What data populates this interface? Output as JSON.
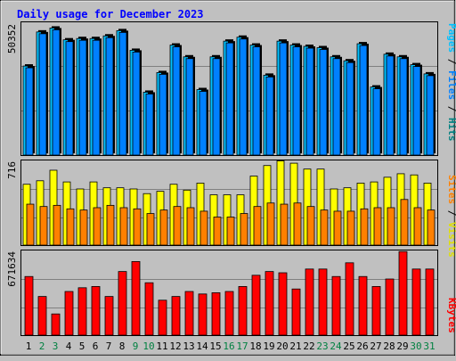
{
  "title": "Daily usage for December 2023",
  "panels": {
    "top": {
      "max_label": "50352",
      "legend": [
        "Pages",
        " / ",
        "Files",
        " / ",
        "Hits"
      ]
    },
    "middle": {
      "max_label": "716",
      "legend": [
        "Sites",
        " / ",
        "Visits"
      ]
    },
    "bottom": {
      "max_label": "671634",
      "legend": [
        "KBytes"
      ]
    }
  },
  "colors": {
    "background": "#c0c0c0",
    "plot_background": "#c0c0c0",
    "title": "#0000ff",
    "hits": "#00c0ff",
    "files": "#0080ff",
    "pages": "#00c0ff",
    "visits": "#ffff00",
    "sites": "#ff8000",
    "kbytes": "#ff0000",
    "weekday_label": "#000000",
    "weekend_label": "#008040"
  },
  "chart_data": [
    {
      "type": "bar",
      "title": "Daily usage for December 2023",
      "categories": [
        "1",
        "2",
        "3",
        "4",
        "5",
        "6",
        "7",
        "8",
        "9",
        "10",
        "11",
        "12",
        "13",
        "14",
        "15",
        "16",
        "17",
        "18",
        "19",
        "20",
        "21",
        "22",
        "23",
        "24",
        "25",
        "26",
        "27",
        "28",
        "29",
        "30",
        "31"
      ],
      "weekend_days": [
        "2",
        "3",
        "9",
        "10",
        "16",
        "17",
        "23",
        "24",
        "30",
        "31"
      ],
      "ylim": [
        0,
        50352
      ],
      "series": [
        {
          "name": "Hits",
          "values": [
            34000,
            47000,
            48500,
            44000,
            44500,
            44500,
            45500,
            47500,
            40000,
            24000,
            31500,
            42000,
            37500,
            25000,
            37500,
            43500,
            45000,
            42000,
            30500,
            43500,
            42000,
            41500,
            41000,
            37500,
            36000,
            42500,
            26000,
            38500,
            37500,
            34500,
            31000
          ]
        },
        {
          "name": "Files",
          "values": [
            34000,
            47000,
            48500,
            44000,
            44500,
            44500,
            45500,
            47500,
            40000,
            24000,
            31500,
            42000,
            37500,
            25000,
            37500,
            43500,
            45000,
            42000,
            30500,
            43500,
            42000,
            41500,
            41000,
            37500,
            36000,
            42500,
            26000,
            38500,
            37500,
            34500,
            31000
          ]
        }
      ]
    },
    {
      "type": "bar",
      "categories": [
        "1",
        "2",
        "3",
        "4",
        "5",
        "6",
        "7",
        "8",
        "9",
        "10",
        "11",
        "12",
        "13",
        "14",
        "15",
        "16",
        "17",
        "18",
        "19",
        "20",
        "21",
        "22",
        "23",
        "24",
        "25",
        "26",
        "27",
        "28",
        "29",
        "30",
        "31"
      ],
      "ylim": [
        0,
        716
      ],
      "series": [
        {
          "name": "Visits",
          "values": [
            520,
            550,
            640,
            540,
            480,
            540,
            490,
            490,
            480,
            440,
            460,
            520,
            470,
            530,
            430,
            430,
            430,
            590,
            680,
            720,
            700,
            650,
            650,
            480,
            490,
            530,
            540,
            580,
            610,
            600,
            530
          ]
        },
        {
          "name": "Sites",
          "values": [
            350,
            330,
            340,
            310,
            300,
            320,
            340,
            320,
            310,
            270,
            300,
            330,
            320,
            290,
            240,
            240,
            270,
            330,
            360,
            350,
            360,
            330,
            300,
            290,
            290,
            310,
            320,
            320,
            390,
            320,
            300
          ]
        }
      ]
    },
    {
      "type": "bar",
      "categories": [
        "1",
        "2",
        "3",
        "4",
        "5",
        "6",
        "7",
        "8",
        "9",
        "10",
        "11",
        "12",
        "13",
        "14",
        "15",
        "16",
        "17",
        "18",
        "19",
        "20",
        "21",
        "22",
        "23",
        "24",
        "25",
        "26",
        "27",
        "28",
        "29",
        "30",
        "31"
      ],
      "ylim": [
        0,
        671634
      ],
      "series": [
        {
          "name": "KBytes",
          "values": [
            470000,
            310000,
            170000,
            350000,
            380000,
            390000,
            310000,
            510000,
            590000,
            420000,
            280000,
            310000,
            350000,
            330000,
            340000,
            350000,
            390000,
            480000,
            510000,
            500000,
            370000,
            530000,
            530000,
            470000,
            580000,
            470000,
            390000,
            450000,
            670000,
            530000,
            530000
          ]
        }
      ]
    }
  ]
}
